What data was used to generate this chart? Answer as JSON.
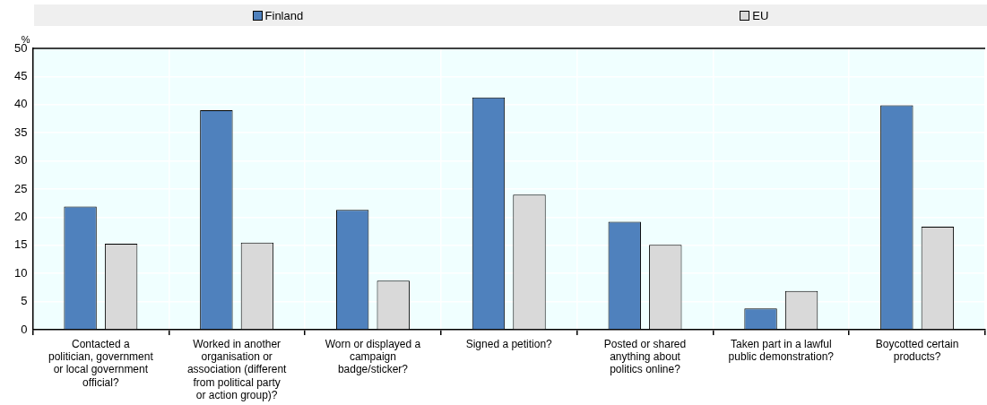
{
  "chart_data": {
    "type": "bar",
    "ylabel": "%",
    "categories": [
      "Contacted a politician, government or local government official?",
      "Worked in another organisation or association (different from political party or action group)?",
      "Worn or displayed a campaign badge/sticker?",
      "Signed a petition?",
      "Posted or shared anything about politics online?",
      "Taken part in a lawful public demonstration?",
      "Boycotted certain products?"
    ],
    "series": [
      {
        "name": "Finland",
        "color": "#4f81bd",
        "values": [
          21.9,
          39.0,
          21.3,
          41.3,
          19.2,
          3.8,
          39.9
        ]
      },
      {
        "name": "EU",
        "color": "#d9d9d9",
        "values": [
          15.3,
          15.5,
          8.7,
          24.0,
          15.1,
          6.9,
          18.3
        ]
      }
    ],
    "ylim": [
      0,
      50
    ],
    "yticks": [
      0,
      5,
      10,
      15,
      20,
      25,
      30,
      35,
      40,
      45,
      50
    ],
    "grid": true,
    "legend": "top"
  }
}
